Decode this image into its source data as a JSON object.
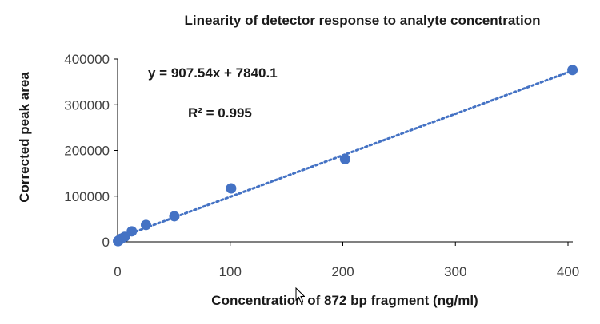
{
  "chart_data": {
    "type": "scatter",
    "title": "Linearity of detector response to analyte concentration",
    "xlabel": "Concentration of 872 bp fragment (ng/ml)",
    "ylabel": "Corrected peak area",
    "xlim": [
      0,
      400
    ],
    "ylim": [
      0,
      400000
    ],
    "x_ticks": [
      "0",
      "100",
      "200",
      "300",
      "400"
    ],
    "y_ticks": [
      "0",
      "100000",
      "200000",
      "300000",
      "400000"
    ],
    "grid": false,
    "legend": "none",
    "series": [
      {
        "x": [
          0.4,
          0.8,
          1.6,
          3.2,
          6.3,
          12.6,
          25.2,
          50.4,
          100.8,
          202,
          404
        ],
        "y": [
          1500,
          2500,
          4000,
          7000,
          11000,
          23000,
          37000,
          56000,
          117000,
          181000,
          376000
        ]
      }
    ],
    "trendline": {
      "type": "linear",
      "slope": 907.54,
      "intercept": 7840.1,
      "style": "dotted"
    },
    "annotations": [
      "y = 907.54x + 7840.1",
      "R² = 0.995"
    ],
    "colors": {
      "marker": "#4472c4",
      "trendline": "#4472c4",
      "axis": "#000000"
    }
  }
}
